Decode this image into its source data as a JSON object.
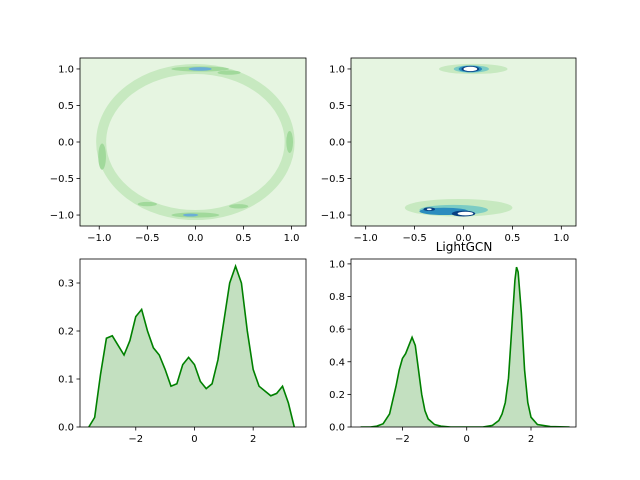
{
  "chart_data": [
    {
      "type": "contour",
      "title": "",
      "xlim": [
        -1.2,
        1.15
      ],
      "ylim": [
        -1.15,
        1.15
      ],
      "xticks": [
        -1.0,
        -0.5,
        0.0,
        0.5,
        1.0
      ],
      "xticklabels": [
        "−1.0",
        "−0.5",
        "0.0",
        "0.5",
        "1.0"
      ],
      "yticks": [
        -1.0,
        -0.5,
        0.0,
        0.5,
        1.0
      ],
      "yticklabels": [
        "−1.0",
        "−0.5",
        "0.0",
        "0.5",
        "1.0"
      ],
      "colors": {
        "background": "#e6f5e1",
        "low": "#c7e9c0",
        "mid": "#a1d99b",
        "high": "#6baed6",
        "peak": "#2171b5"
      },
      "density_regions": [
        {
          "level": "low",
          "shape": "ring",
          "cx": 0.0,
          "cy": 0.0,
          "rx": 0.98,
          "ry": 1.0
        },
        {
          "level": "mid",
          "cx": 0.05,
          "cy": 1.0,
          "rx": 0.3,
          "ry": 0.035
        },
        {
          "level": "high",
          "cx": 0.05,
          "cy": 1.0,
          "rx": 0.12,
          "ry": 0.025
        },
        {
          "level": "mid",
          "cx": 0.35,
          "cy": 0.95,
          "rx": 0.12,
          "ry": 0.03
        },
        {
          "level": "mid",
          "cx": 0.0,
          "cy": -1.0,
          "rx": 0.25,
          "ry": 0.035
        },
        {
          "level": "high",
          "cx": -0.05,
          "cy": -1.0,
          "rx": 0.08,
          "ry": 0.02
        },
        {
          "level": "mid",
          "cx": -0.97,
          "cy": -0.2,
          "rx": 0.04,
          "ry": 0.18
        },
        {
          "level": "mid",
          "cx": 0.98,
          "cy": 0.0,
          "rx": 0.035,
          "ry": 0.15
        },
        {
          "level": "mid",
          "cx": -0.5,
          "cy": -0.85,
          "rx": 0.1,
          "ry": 0.03
        },
        {
          "level": "mid",
          "cx": 0.45,
          "cy": -0.88,
          "rx": 0.1,
          "ry": 0.03
        }
      ]
    },
    {
      "type": "contour",
      "title": "",
      "xlim": [
        -1.15,
        1.15
      ],
      "ylim": [
        -1.15,
        1.15
      ],
      "xticks": [
        -1.0,
        -0.5,
        0.0,
        0.5,
        1.0
      ],
      "xticklabels": [
        "−1.0",
        "−0.5",
        "0.0",
        "0.5",
        "1.0"
      ],
      "yticks": [
        -1.0,
        -0.5,
        0.0,
        0.5,
        1.0
      ],
      "yticklabels": [
        "−1.0",
        "−0.5",
        "0.0",
        "0.5",
        "1.0"
      ],
      "colors": {
        "background": "#e6f5e1",
        "low": "#c7e9c0",
        "mid": "#7bccc4",
        "high": "#2b8cbe",
        "peak": "#084081",
        "core": "#ffffff"
      },
      "density_regions": [
        {
          "level": "low",
          "cx": 0.1,
          "cy": 1.0,
          "rx": 0.35,
          "ry": 0.07
        },
        {
          "level": "mid",
          "cx": 0.08,
          "cy": 1.0,
          "rx": 0.18,
          "ry": 0.05
        },
        {
          "level": "high",
          "cx": 0.07,
          "cy": 1.0,
          "rx": 0.12,
          "ry": 0.045
        },
        {
          "level": "peak",
          "cx": 0.07,
          "cy": 1.0,
          "rx": 0.09,
          "ry": 0.04
        },
        {
          "level": "core",
          "cx": 0.07,
          "cy": 1.0,
          "rx": 0.07,
          "ry": 0.03
        },
        {
          "level": "low",
          "cx": -0.05,
          "cy": -0.9,
          "rx": 0.55,
          "ry": 0.12
        },
        {
          "level": "mid",
          "cx": -0.1,
          "cy": -0.93,
          "rx": 0.35,
          "ry": 0.07
        },
        {
          "level": "high",
          "cx": -0.2,
          "cy": -0.95,
          "rx": 0.25,
          "ry": 0.05
        },
        {
          "level": "peak",
          "cx": 0.0,
          "cy": -0.98,
          "rx": 0.12,
          "ry": 0.04
        },
        {
          "level": "core",
          "cx": 0.02,
          "cy": -0.98,
          "rx": 0.08,
          "ry": 0.025
        },
        {
          "level": "peak",
          "cx": -0.35,
          "cy": -0.92,
          "rx": 0.06,
          "ry": 0.025
        },
        {
          "level": "core",
          "cx": -0.35,
          "cy": -0.92,
          "rx": 0.025,
          "ry": 0.012
        }
      ]
    },
    {
      "type": "area",
      "title": "",
      "xlim": [
        -3.9,
        3.8
      ],
      "ylim": [
        0.0,
        0.35
      ],
      "xticks": [
        -2,
        0,
        2
      ],
      "xticklabels": [
        "−2",
        "0",
        "2"
      ],
      "yticks": [
        0.0,
        0.1,
        0.2,
        0.3
      ],
      "yticklabels": [
        "0.0",
        "0.1",
        "0.2",
        "0.3"
      ],
      "colors": {
        "line": "#008000",
        "fill": "#c3e0c0"
      },
      "x": [
        -3.6,
        -3.4,
        -3.2,
        -3.0,
        -2.8,
        -2.6,
        -2.4,
        -2.2,
        -2.0,
        -1.8,
        -1.6,
        -1.4,
        -1.2,
        -1.0,
        -0.8,
        -0.6,
        -0.4,
        -0.2,
        0.0,
        0.2,
        0.4,
        0.6,
        0.8,
        1.0,
        1.2,
        1.4,
        1.6,
        1.8,
        2.0,
        2.2,
        2.4,
        2.6,
        2.8,
        3.0,
        3.2,
        3.4
      ],
      "y": [
        0.0,
        0.02,
        0.11,
        0.185,
        0.19,
        0.17,
        0.15,
        0.18,
        0.23,
        0.245,
        0.2,
        0.165,
        0.15,
        0.12,
        0.085,
        0.09,
        0.13,
        0.145,
        0.13,
        0.095,
        0.08,
        0.09,
        0.14,
        0.22,
        0.3,
        0.335,
        0.3,
        0.2,
        0.12,
        0.085,
        0.075,
        0.065,
        0.07,
        0.085,
        0.05,
        0.0
      ]
    },
    {
      "type": "area",
      "title": "LightGCN",
      "xlim": [
        -3.6,
        3.4
      ],
      "ylim": [
        0.0,
        1.03
      ],
      "xticks": [
        -2,
        0,
        2
      ],
      "xticklabels": [
        "−2",
        "0",
        "2"
      ],
      "yticks": [
        0.0,
        0.2,
        0.4,
        0.6,
        0.8,
        1.0
      ],
      "yticklabels": [
        "0.0",
        "0.2",
        "0.4",
        "0.6",
        "0.8",
        "1.0"
      ],
      "colors": {
        "line": "#008000",
        "fill": "#c3e0c0"
      },
      "x": [
        -3.3,
        -3.0,
        -2.8,
        -2.6,
        -2.4,
        -2.2,
        -2.1,
        -2.0,
        -1.9,
        -1.8,
        -1.7,
        -1.6,
        -1.5,
        -1.4,
        -1.3,
        -1.2,
        -1.0,
        -0.8,
        -0.5,
        0.0,
        0.5,
        0.8,
        1.0,
        1.1,
        1.2,
        1.3,
        1.4,
        1.5,
        1.55,
        1.6,
        1.7,
        1.8,
        1.9,
        2.0,
        2.2,
        2.6,
        3.2
      ],
      "y": [
        0.0,
        0.0,
        0.005,
        0.02,
        0.08,
        0.25,
        0.35,
        0.42,
        0.45,
        0.5,
        0.55,
        0.5,
        0.35,
        0.2,
        0.1,
        0.05,
        0.015,
        0.005,
        0.0,
        0.0,
        0.0,
        0.01,
        0.04,
        0.08,
        0.15,
        0.3,
        0.6,
        0.9,
        0.98,
        0.95,
        0.7,
        0.35,
        0.15,
        0.06,
        0.015,
        0.003,
        0.0
      ]
    }
  ]
}
